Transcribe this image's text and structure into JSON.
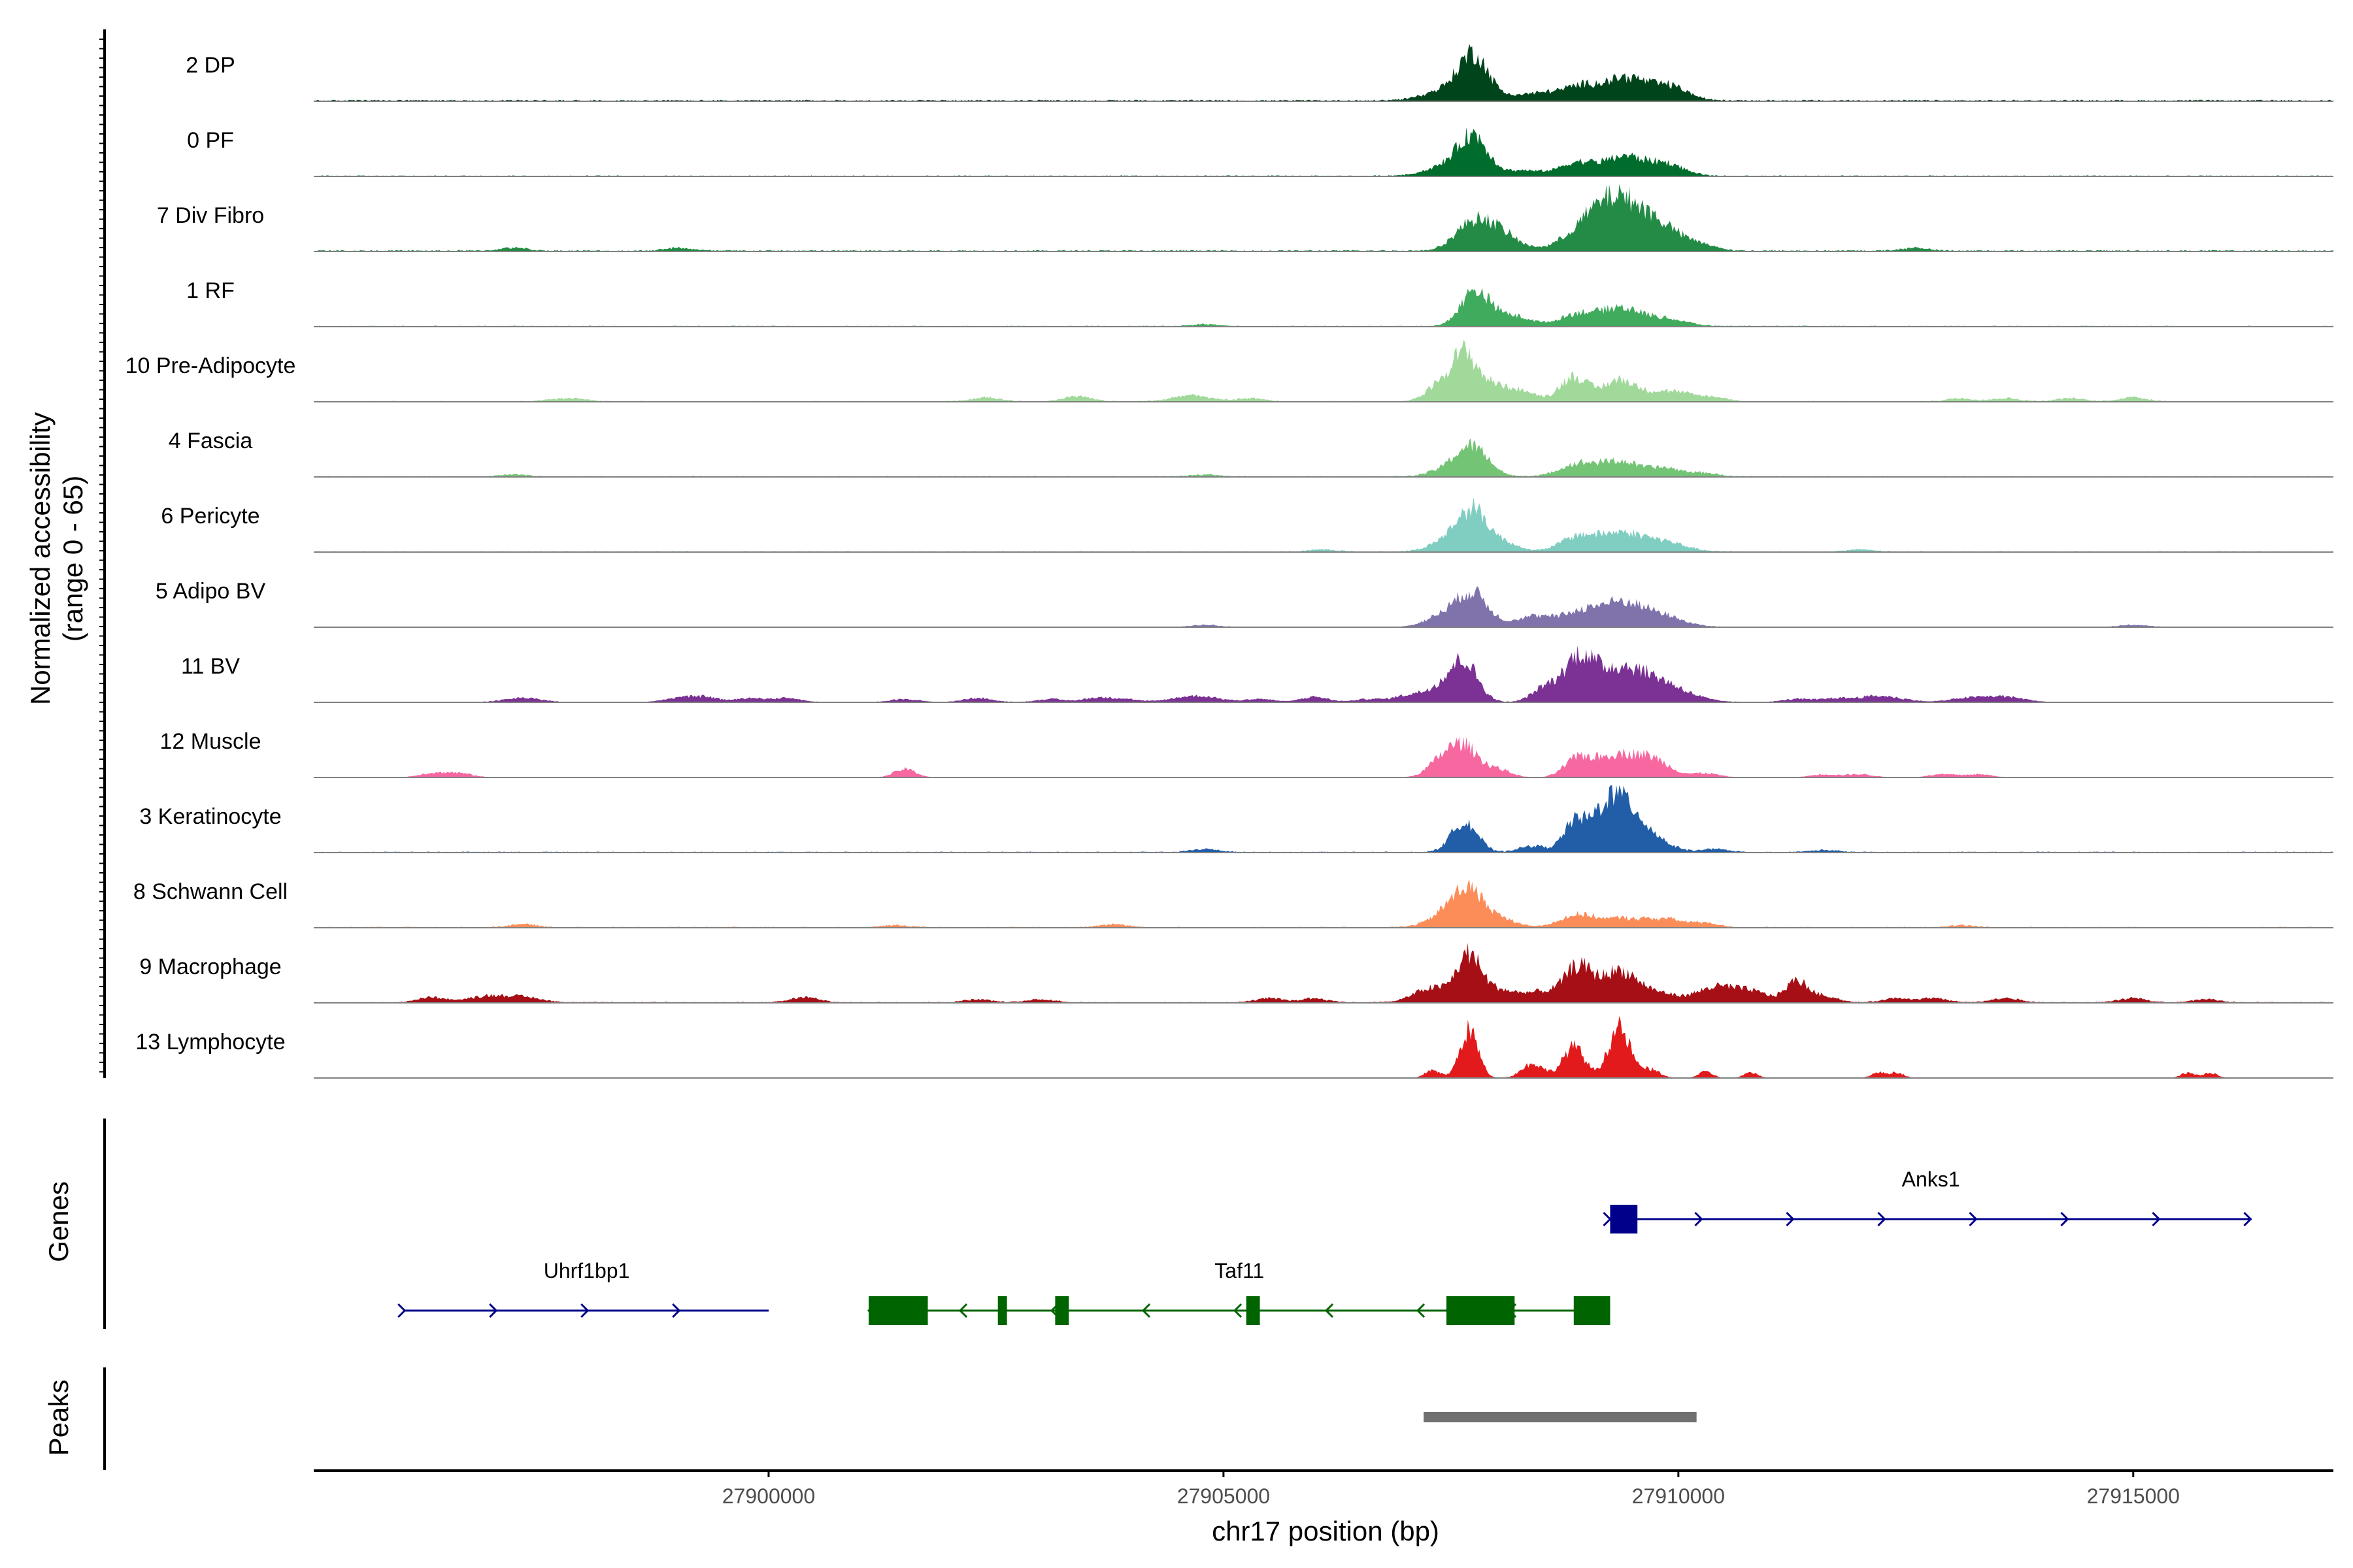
{
  "chart_data": {
    "type": "coverage",
    "title": "",
    "ylabel_line1": "Normalized accessibility",
    "ylabel_line2": "(range 0 - 65)",
    "y_range": [
      0,
      65
    ],
    "xlabel": "chr17 position (bp)",
    "x_range": [
      27895000,
      27917200
    ],
    "x_ticks": [
      27900000,
      27905000,
      27910000,
      27915000
    ],
    "x_tick_labels": [
      "27900000",
      "27905000",
      "27910000",
      "27915000"
    ],
    "tracks": [
      {
        "name": "2 DP",
        "color": "#00441b",
        "baseline": 1.5,
        "peaks": [
          [
            27907750,
            34,
            150
          ],
          [
            27907600,
            14,
            300
          ],
          [
            27909000,
            14,
            220
          ],
          [
            27909450,
            20,
            200
          ],
          [
            27909900,
            14,
            200
          ],
          [
            27908500,
            7,
            250
          ]
        ]
      },
      {
        "name": "0 PF",
        "color": "#006d2c",
        "baseline": 1.0,
        "peaks": [
          [
            27907750,
            34,
            160
          ],
          [
            27907500,
            10,
            250
          ],
          [
            27908900,
            13,
            200
          ],
          [
            27909400,
            18,
            200
          ],
          [
            27909850,
            12,
            200
          ],
          [
            27908300,
            5,
            200
          ]
        ]
      },
      {
        "name": "7 Div Fibro",
        "color": "#238b45",
        "baseline": 1.5,
        "peaks": [
          [
            27907750,
            26,
            200
          ],
          [
            27908050,
            14,
            200
          ],
          [
            27909000,
            20,
            250
          ],
          [
            27909350,
            42,
            250
          ],
          [
            27909800,
            22,
            250
          ],
          [
            27910300,
            4,
            150
          ],
          [
            27897200,
            3,
            150
          ],
          [
            27899000,
            3,
            150
          ],
          [
            27912600,
            3,
            150
          ]
        ]
      },
      {
        "name": "1 RF",
        "color": "#41ab5d",
        "baseline": 1.0,
        "peaks": [
          [
            27907750,
            30,
            150
          ],
          [
            27908000,
            10,
            200
          ],
          [
            27908900,
            12,
            200
          ],
          [
            27909350,
            16,
            200
          ],
          [
            27909800,
            8,
            250
          ],
          [
            27908300,
            5,
            150
          ],
          [
            27904800,
            2,
            150
          ]
        ]
      },
      {
        "name": "10 Pre-Adipocyte",
        "color": "#a1d99b",
        "baseline": 1.0,
        "peaks": [
          [
            27907650,
            40,
            130
          ],
          [
            27907400,
            18,
            150
          ],
          [
            27907950,
            16,
            180
          ],
          [
            27908300,
            8,
            150
          ],
          [
            27908850,
            24,
            150
          ],
          [
            27909350,
            20,
            180
          ],
          [
            27909900,
            10,
            250
          ],
          [
            27910400,
            3,
            150
          ],
          [
            27897800,
            3,
            200
          ],
          [
            27902400,
            4,
            150
          ],
          [
            27903400,
            5,
            150
          ],
          [
            27904650,
            6,
            200
          ],
          [
            27905300,
            3,
            150
          ],
          [
            27913100,
            3,
            150
          ],
          [
            27913600,
            3,
            150
          ],
          [
            27914300,
            3,
            150
          ],
          [
            27915000,
            4,
            150
          ]
        ]
      },
      {
        "name": "4 Fascia",
        "color": "#74c476",
        "baseline": 1.0,
        "peaks": [
          [
            27907750,
            26,
            170
          ],
          [
            27907500,
            8,
            200
          ],
          [
            27908900,
            12,
            200
          ],
          [
            27909350,
            14,
            200
          ],
          [
            27909850,
            8,
            200
          ],
          [
            27910300,
            3,
            150
          ],
          [
            27904800,
            2,
            150
          ],
          [
            27897200,
            2,
            150
          ]
        ]
      },
      {
        "name": "6 Pericyte",
        "color": "#80cdc1",
        "baseline": 1.0,
        "peaks": [
          [
            27907750,
            36,
            160
          ],
          [
            27907500,
            12,
            200
          ],
          [
            27908100,
            8,
            150
          ],
          [
            27908900,
            14,
            200
          ],
          [
            27909350,
            16,
            220
          ],
          [
            27909800,
            10,
            250
          ],
          [
            27906100,
            2,
            150
          ],
          [
            27912000,
            2,
            150
          ]
        ]
      },
      {
        "name": "5 Adipo BV",
        "color": "#8073ac",
        "baseline": 0.5,
        "peaks": [
          [
            27907750,
            30,
            170
          ],
          [
            27907450,
            12,
            200
          ],
          [
            27908400,
            10,
            200
          ],
          [
            27908900,
            12,
            200
          ],
          [
            27909350,
            22,
            250
          ],
          [
            27909800,
            10,
            250
          ],
          [
            27904800,
            2,
            150
          ],
          [
            27915000,
            2,
            150
          ]
        ]
      },
      {
        "name": "11 BV",
        "color": "#7b3294",
        "baseline": 0.5,
        "peaks": [
          [
            27907650,
            34,
            150
          ],
          [
            27907400,
            14,
            200
          ],
          [
            27908550,
            14,
            150
          ],
          [
            27908900,
            34,
            150
          ],
          [
            27909300,
            30,
            300
          ],
          [
            27909800,
            16,
            300
          ],
          [
            27897300,
            4,
            200
          ],
          [
            27899000,
            4,
            150
          ],
          [
            27899300,
            5,
            150
          ],
          [
            27899800,
            4,
            150
          ],
          [
            27900200,
            4,
            150
          ],
          [
            27901500,
            3,
            150
          ],
          [
            27902300,
            4,
            150
          ],
          [
            27903100,
            3,
            150
          ],
          [
            27903600,
            4,
            150
          ],
          [
            27903900,
            3,
            150
          ],
          [
            27904700,
            6,
            250
          ],
          [
            27905400,
            3,
            150
          ],
          [
            27906000,
            5,
            150
          ],
          [
            27906600,
            3,
            150
          ],
          [
            27907000,
            5,
            150
          ],
          [
            27911300,
            3,
            150
          ],
          [
            27911700,
            3,
            150
          ],
          [
            27912200,
            6,
            250
          ],
          [
            27913200,
            4,
            200
          ],
          [
            27913600,
            5,
            200
          ]
        ]
      },
      {
        "name": "12 Muscle",
        "color": "#f768a1",
        "baseline": 0.0,
        "peaks": [
          [
            27907650,
            28,
            150
          ],
          [
            27907400,
            16,
            150
          ],
          [
            27908000,
            8,
            150
          ],
          [
            27908900,
            18,
            150
          ],
          [
            27909300,
            20,
            200
          ],
          [
            27909700,
            18,
            200
          ],
          [
            27910300,
            4,
            150
          ],
          [
            27896300,
            4,
            150
          ],
          [
            27896600,
            4,
            150
          ],
          [
            27901500,
            8,
            120
          ],
          [
            27911600,
            3,
            150
          ],
          [
            27912000,
            3,
            150
          ],
          [
            27912900,
            3,
            150
          ],
          [
            27913300,
            3,
            150
          ]
        ]
      },
      {
        "name": "3 Keratinocyte",
        "color": "#225ea8",
        "baseline": 1.0,
        "peaks": [
          [
            27907650,
            30,
            140
          ],
          [
            27908850,
            24,
            120
          ],
          [
            27909300,
            56,
            220
          ],
          [
            27909700,
            12,
            200
          ],
          [
            27908400,
            6,
            150
          ],
          [
            27910400,
            3,
            150
          ],
          [
            27904800,
            3,
            150
          ],
          [
            27911600,
            2,
            150
          ]
        ]
      },
      {
        "name": "8 Schwann Cell",
        "color": "#fc8d59",
        "baseline": 1.0,
        "peaks": [
          [
            27907700,
            34,
            180
          ],
          [
            27907450,
            10,
            200
          ],
          [
            27908100,
            6,
            150
          ],
          [
            27908900,
            12,
            200
          ],
          [
            27909400,
            8,
            200
          ],
          [
            27909850,
            8,
            200
          ],
          [
            27910300,
            4,
            150
          ],
          [
            27897300,
            3,
            150
          ],
          [
            27901400,
            2,
            150
          ],
          [
            27903800,
            3,
            150
          ],
          [
            27913100,
            2,
            150
          ]
        ]
      },
      {
        "name": "9 Macrophage",
        "color": "#a50f15",
        "baseline": 1.0,
        "peaks": [
          [
            27907700,
            44,
            130
          ],
          [
            27907300,
            14,
            200
          ],
          [
            27908000,
            10,
            150
          ],
          [
            27908450,
            10,
            250
          ],
          [
            27908900,
            32,
            150
          ],
          [
            27909350,
            30,
            200
          ],
          [
            27909800,
            8,
            200
          ],
          [
            27910400,
            14,
            200
          ],
          [
            27910800,
            10,
            200
          ],
          [
            27911300,
            20,
            120
          ],
          [
            27911600,
            6,
            150
          ],
          [
            27896300,
            5,
            150
          ],
          [
            27896900,
            6,
            200
          ],
          [
            27897300,
            5,
            200
          ],
          [
            27900400,
            5,
            150
          ],
          [
            27902300,
            3,
            150
          ],
          [
            27903000,
            3,
            150
          ],
          [
            27905500,
            4,
            150
          ],
          [
            27906000,
            4,
            150
          ],
          [
            27912400,
            4,
            150
          ],
          [
            27912800,
            4,
            150
          ],
          [
            27913600,
            4,
            150
          ],
          [
            27915000,
            4,
            150
          ],
          [
            27915800,
            3,
            150
          ]
        ]
      },
      {
        "name": "13 Lymphocyte",
        "color": "#e31a1c",
        "baseline": 0.0,
        "peaks": [
          [
            27907700,
            46,
            100
          ],
          [
            27907300,
            8,
            80
          ],
          [
            27908400,
            14,
            120
          ],
          [
            27908850,
            30,
            120
          ],
          [
            27909350,
            48,
            120
          ],
          [
            27909700,
            8,
            100
          ],
          [
            27910300,
            6,
            80
          ],
          [
            27910800,
            5,
            80
          ],
          [
            27912200,
            5,
            80
          ],
          [
            27912400,
            5,
            80
          ],
          [
            27915600,
            5,
            80
          ],
          [
            27915850,
            5,
            80
          ]
        ]
      }
    ],
    "genes_label": "Genes",
    "genes": [
      {
        "name": "Anks1",
        "strand": "+",
        "color": "#00008b",
        "start": 27909250,
        "end": 27916300,
        "row": 0,
        "exons": [
          [
            27909250,
            27909550
          ]
        ]
      },
      {
        "name": "Uhrf1bp1",
        "strand": "+",
        "color": "#00008b",
        "start": 27896000,
        "end": 27900000,
        "row": 1,
        "exons": []
      },
      {
        "name": "Taf11",
        "strand": "-",
        "color": "#006400",
        "start": 27901100,
        "end": 27909250,
        "row": 1,
        "exons": [
          [
            27901100,
            27901750
          ],
          [
            27902520,
            27902620
          ],
          [
            27903150,
            27903300
          ],
          [
            27905250,
            27905400
          ],
          [
            27907450,
            27908200
          ],
          [
            27908850,
            27909250
          ]
        ]
      }
    ],
    "peaks_label": "Peaks",
    "peak_regions": [
      {
        "start": 27907200,
        "end": 27910200,
        "color": "#707070"
      }
    ]
  }
}
